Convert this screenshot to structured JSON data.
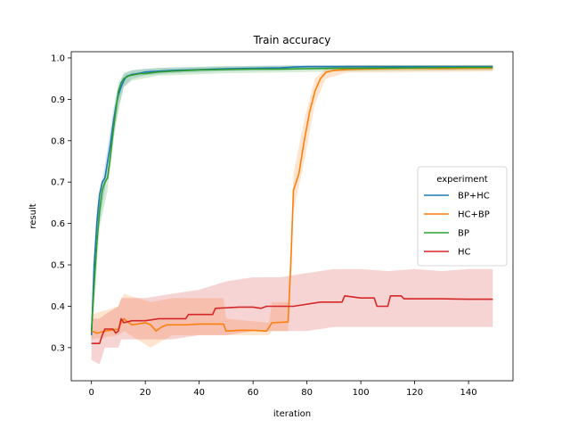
{
  "chart_data": {
    "type": "line",
    "title": "Train accuracy",
    "xlabel": "iteration",
    "ylabel": "result",
    "xlim": [
      -7.5,
      156.5
    ],
    "ylim": [
      0.22,
      1.015
    ],
    "xticks": [
      0,
      20,
      40,
      60,
      80,
      100,
      120,
      140
    ],
    "yticks": [
      0.3,
      0.4,
      0.5,
      0.6,
      0.7,
      0.8,
      0.9,
      1.0
    ],
    "xtick_labels": [
      "0",
      "20",
      "40",
      "60",
      "80",
      "100",
      "120",
      "140"
    ],
    "ytick_labels": [
      "0.3",
      "0.4",
      "0.5",
      "0.6",
      "0.7",
      "0.8",
      "0.9",
      "1.0"
    ],
    "grid": false,
    "legend": {
      "title": "experiment",
      "placement": "center-right"
    },
    "series": [
      {
        "name": "BP+HC",
        "color": "#1f77b4",
        "points": [
          [
            0,
            0.33
          ],
          [
            1,
            0.5
          ],
          [
            2,
            0.6
          ],
          [
            3,
            0.67
          ],
          [
            4,
            0.7
          ],
          [
            5,
            0.71
          ],
          [
            6,
            0.75
          ],
          [
            7,
            0.79
          ],
          [
            8,
            0.84
          ],
          [
            9,
            0.88
          ],
          [
            10,
            0.91
          ],
          [
            11,
            0.93
          ],
          [
            12,
            0.945
          ],
          [
            13,
            0.955
          ],
          [
            15,
            0.96
          ],
          [
            18,
            0.963
          ],
          [
            20,
            0.966
          ],
          [
            25,
            0.968
          ],
          [
            30,
            0.97
          ],
          [
            40,
            0.972
          ],
          [
            50,
            0.974
          ],
          [
            60,
            0.975
          ],
          [
            70,
            0.976
          ],
          [
            75,
            0.978
          ],
          [
            80,
            0.979
          ],
          [
            90,
            0.979
          ],
          [
            100,
            0.979
          ],
          [
            120,
            0.979
          ],
          [
            140,
            0.979
          ],
          [
            149,
            0.979
          ]
        ],
        "band": [
          [
            0,
            0.3,
            0.36
          ],
          [
            2,
            0.56,
            0.64
          ],
          [
            5,
            0.68,
            0.74
          ],
          [
            8,
            0.8,
            0.87
          ],
          [
            10,
            0.88,
            0.94
          ],
          [
            12,
            0.93,
            0.96
          ],
          [
            15,
            0.95,
            0.97
          ],
          [
            20,
            0.958,
            0.974
          ],
          [
            30,
            0.963,
            0.977
          ],
          [
            50,
            0.968,
            0.98
          ],
          [
            70,
            0.97,
            0.982
          ],
          [
            100,
            0.974,
            0.983
          ],
          [
            149,
            0.975,
            0.983
          ]
        ]
      },
      {
        "name": "HC+BP",
        "color": "#ff7f0e",
        "points": [
          [
            0,
            0.34
          ],
          [
            2,
            0.335
          ],
          [
            5,
            0.34
          ],
          [
            10,
            0.345
          ],
          [
            11,
            0.36
          ],
          [
            12,
            0.37
          ],
          [
            15,
            0.355
          ],
          [
            20,
            0.36
          ],
          [
            22,
            0.355
          ],
          [
            24,
            0.34
          ],
          [
            26,
            0.35
          ],
          [
            28,
            0.355
          ],
          [
            35,
            0.355
          ],
          [
            40,
            0.357
          ],
          [
            49,
            0.357
          ],
          [
            50,
            0.34
          ],
          [
            55,
            0.342
          ],
          [
            60,
            0.342
          ],
          [
            65,
            0.34
          ],
          [
            67,
            0.36
          ],
          [
            73,
            0.362
          ],
          [
            74,
            0.5
          ],
          [
            75,
            0.68
          ],
          [
            77,
            0.72
          ],
          [
            79,
            0.8
          ],
          [
            81,
            0.87
          ],
          [
            83,
            0.92
          ],
          [
            85,
            0.95
          ],
          [
            87,
            0.965
          ],
          [
            90,
            0.97
          ],
          [
            95,
            0.972
          ],
          [
            100,
            0.973
          ],
          [
            110,
            0.974
          ],
          [
            120,
            0.975
          ],
          [
            130,
            0.974
          ],
          [
            140,
            0.975
          ],
          [
            149,
            0.975
          ]
        ],
        "band": [
          [
            0,
            0.32,
            0.38
          ],
          [
            10,
            0.33,
            0.4
          ],
          [
            12,
            0.34,
            0.43
          ],
          [
            22,
            0.3,
            0.41
          ],
          [
            30,
            0.33,
            0.42
          ],
          [
            49,
            0.33,
            0.42
          ],
          [
            50,
            0.33,
            0.37
          ],
          [
            66,
            0.33,
            0.36
          ],
          [
            67,
            0.34,
            0.41
          ],
          [
            73,
            0.34,
            0.41
          ],
          [
            75,
            0.63,
            0.72
          ],
          [
            79,
            0.75,
            0.85
          ],
          [
            83,
            0.89,
            0.95
          ],
          [
            87,
            0.95,
            0.975
          ],
          [
            95,
            0.965,
            0.982
          ],
          [
            149,
            0.967,
            0.982
          ]
        ]
      },
      {
        "name": "BP",
        "color": "#2ca02c",
        "points": [
          [
            0,
            0.34
          ],
          [
            1,
            0.45
          ],
          [
            2,
            0.55
          ],
          [
            3,
            0.63
          ],
          [
            4,
            0.68
          ],
          [
            5,
            0.7
          ],
          [
            6,
            0.71
          ],
          [
            7,
            0.76
          ],
          [
            8,
            0.82
          ],
          [
            9,
            0.87
          ],
          [
            10,
            0.92
          ],
          [
            11,
            0.94
          ],
          [
            12,
            0.95
          ],
          [
            14,
            0.957
          ],
          [
            18,
            0.962
          ],
          [
            20,
            0.962
          ],
          [
            25,
            0.966
          ],
          [
            30,
            0.968
          ],
          [
            40,
            0.971
          ],
          [
            50,
            0.972
          ],
          [
            60,
            0.973
          ],
          [
            70,
            0.973
          ],
          [
            80,
            0.974
          ],
          [
            90,
            0.975
          ],
          [
            100,
            0.975
          ],
          [
            120,
            0.976
          ],
          [
            140,
            0.977
          ],
          [
            149,
            0.977
          ]
        ],
        "band": [
          [
            0,
            0.31,
            0.37
          ],
          [
            3,
            0.59,
            0.67
          ],
          [
            6,
            0.68,
            0.74
          ],
          [
            9,
            0.84,
            0.9
          ],
          [
            12,
            0.93,
            0.965
          ],
          [
            15,
            0.945,
            0.97
          ],
          [
            25,
            0.957,
            0.976
          ],
          [
            50,
            0.963,
            0.98
          ],
          [
            100,
            0.968,
            0.982
          ],
          [
            149,
            0.97,
            0.983
          ]
        ]
      },
      {
        "name": "HC",
        "color": "#d62728",
        "points": [
          [
            0,
            0.31
          ],
          [
            2,
            0.31
          ],
          [
            3,
            0.31
          ],
          [
            4,
            0.33
          ],
          [
            5,
            0.345
          ],
          [
            8,
            0.345
          ],
          [
            9,
            0.335
          ],
          [
            10,
            0.34
          ],
          [
            11,
            0.37
          ],
          [
            12,
            0.36
          ],
          [
            15,
            0.365
          ],
          [
            20,
            0.365
          ],
          [
            25,
            0.37
          ],
          [
            30,
            0.37
          ],
          [
            35,
            0.37
          ],
          [
            36,
            0.38
          ],
          [
            45,
            0.38
          ],
          [
            46,
            0.395
          ],
          [
            55,
            0.398
          ],
          [
            60,
            0.398
          ],
          [
            63,
            0.395
          ],
          [
            65,
            0.4
          ],
          [
            70,
            0.4
          ],
          [
            75,
            0.4
          ],
          [
            85,
            0.41
          ],
          [
            93,
            0.41
          ],
          [
            94,
            0.425
          ],
          [
            100,
            0.42
          ],
          [
            105,
            0.42
          ],
          [
            106,
            0.4
          ],
          [
            110,
            0.4
          ],
          [
            111,
            0.425
          ],
          [
            115,
            0.425
          ],
          [
            116,
            0.418
          ],
          [
            130,
            0.418
          ],
          [
            140,
            0.417
          ],
          [
            149,
            0.417
          ]
        ],
        "band": [
          [
            0,
            0.27,
            0.37
          ],
          [
            3,
            0.26,
            0.37
          ],
          [
            5,
            0.3,
            0.38
          ],
          [
            10,
            0.3,
            0.4
          ],
          [
            11,
            0.32,
            0.42
          ],
          [
            20,
            0.32,
            0.42
          ],
          [
            30,
            0.32,
            0.43
          ],
          [
            40,
            0.33,
            0.44
          ],
          [
            50,
            0.33,
            0.46
          ],
          [
            60,
            0.34,
            0.47
          ],
          [
            70,
            0.34,
            0.47
          ],
          [
            80,
            0.34,
            0.48
          ],
          [
            90,
            0.35,
            0.49
          ],
          [
            100,
            0.35,
            0.49
          ],
          [
            110,
            0.35,
            0.485
          ],
          [
            120,
            0.35,
            0.49
          ],
          [
            130,
            0.35,
            0.485
          ],
          [
            140,
            0.35,
            0.49
          ],
          [
            149,
            0.35,
            0.49
          ]
        ]
      }
    ]
  }
}
